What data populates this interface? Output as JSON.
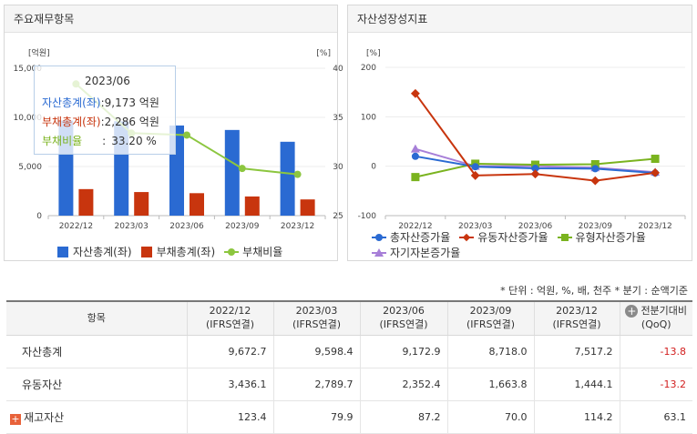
{
  "left_panel": {
    "title": "주요재무항목"
  },
  "right_panel": {
    "title": "자산성장성지표"
  },
  "tooltip": {
    "period": "2023/06",
    "rows": [
      {
        "label": "자산총계(좌)",
        "sep": ":",
        "value": "9,173 억원",
        "color": "#2a6ad2"
      },
      {
        "label": "부채총계(좌)",
        "sep": ":",
        "value": "2,286 억원",
        "color": "#c8350e"
      },
      {
        "label": "부채비율",
        "sep": ":",
        "value": "33.20 %",
        "color": "#7ab31f"
      }
    ]
  },
  "chart_data": [
    {
      "type": "bar",
      "title": "주요재무항목",
      "categories": [
        "2022/12",
        "2023/03",
        "2023/06",
        "2023/09",
        "2023/12"
      ],
      "y_left_unit": "[억원]",
      "y_right_unit": "[%]",
      "ylim_left": [
        0,
        15000
      ],
      "ylim_right": [
        25,
        40
      ],
      "y_left_ticks": [
        0,
        5000,
        10000,
        15000
      ],
      "y_left_tick_labels": [
        "0",
        "5,000",
        "10,000",
        "15,000"
      ],
      "y_right_ticks": [
        25,
        30,
        35,
        40
      ],
      "series": [
        {
          "name": "자산총계(좌)",
          "kind": "bar",
          "axis": "left",
          "color": "#2a6ad2",
          "values": [
            9672.7,
            9598.4,
            9172.9,
            8718.0,
            7517.2
          ]
        },
        {
          "name": "부채총계(좌)",
          "kind": "bar",
          "axis": "left",
          "color": "#c8350e",
          "values": [
            2700,
            2400,
            2286,
            1950,
            1650
          ]
        },
        {
          "name": "부채비율",
          "kind": "line",
          "axis": "right",
          "color": "#8cc63f",
          "values": [
            38.4,
            33.4,
            33.2,
            29.8,
            29.2
          ]
        }
      ],
      "legend": "bottom"
    },
    {
      "type": "line",
      "title": "자산성장성지표",
      "categories": [
        "2022/12",
        "2023/03",
        "2023/06",
        "2023/09",
        "2023/12"
      ],
      "y_unit": "[%]",
      "ylim": [
        -100,
        200
      ],
      "y_ticks": [
        -100,
        0,
        100,
        200
      ],
      "series": [
        {
          "name": "총자산증가율",
          "marker": "circle",
          "color": "#2a6ad2",
          "values": [
            20,
            -1,
            -4.4,
            -5,
            -13.8
          ]
        },
        {
          "name": "유동자산증가율",
          "marker": "diamond",
          "color": "#c8350e",
          "values": [
            147,
            -18.8,
            -15.7,
            -29.3,
            -13.2
          ]
        },
        {
          "name": "유형자산증가율",
          "marker": "square",
          "color": "#7ab31f",
          "values": [
            -22,
            5,
            3,
            4,
            15
          ]
        },
        {
          "name": "자기자본증가율",
          "marker": "triangle",
          "color": "#a77fd8",
          "values": [
            35,
            0,
            0,
            -3,
            -12
          ]
        }
      ],
      "legend": "bottom"
    }
  ],
  "table": {
    "unit_note": "* 단위 : 억원, %, 배, 천주   * 분기 : 순액기준",
    "headers": [
      {
        "line1": "항목",
        "line2": ""
      },
      {
        "line1": "2022/12",
        "line2": "(IFRS연결)"
      },
      {
        "line1": "2023/03",
        "line2": "(IFRS연결)"
      },
      {
        "line1": "2023/06",
        "line2": "(IFRS연결)"
      },
      {
        "line1": "2023/09",
        "line2": "(IFRS연결)"
      },
      {
        "line1": "2023/12",
        "line2": "(IFRS연결)"
      },
      {
        "line1": "전분기대비",
        "line2": "(QoQ)"
      }
    ],
    "rows": [
      {
        "label": "자산총계",
        "values": [
          "9,672.7",
          "9,598.4",
          "9,172.9",
          "8,718.0",
          "7,517.2"
        ],
        "qoq": "-13.8"
      },
      {
        "label": "유동자산",
        "values": [
          "3,436.1",
          "2,789.7",
          "2,352.4",
          "1,663.8",
          "1,444.1"
        ],
        "qoq": "-13.2"
      },
      {
        "label": "재고자산",
        "values": [
          "123.4",
          "79.9",
          "87.2",
          "70.0",
          "114.2"
        ],
        "qoq": "63.1"
      }
    ]
  }
}
